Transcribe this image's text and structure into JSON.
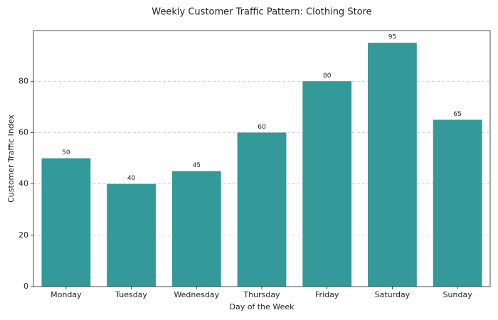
{
  "chart_data": {
    "type": "bar",
    "title": "Weekly Customer Traffic Pattern: Clothing Store",
    "x_label": "Day of the Week",
    "y_label": "Customer Traffic Index",
    "categories": [
      "Monday",
      "Tuesday",
      "Wednesday",
      "Thursday",
      "Friday",
      "Saturday",
      "Sunday"
    ],
    "values": [
      50,
      40,
      45,
      60,
      80,
      95,
      65
    ],
    "color": "#339999",
    "ylim": [
      0,
      99.75
    ],
    "yticks": [
      0,
      20,
      40,
      60,
      80
    ],
    "grid": true,
    "show_value_labels": true
  }
}
